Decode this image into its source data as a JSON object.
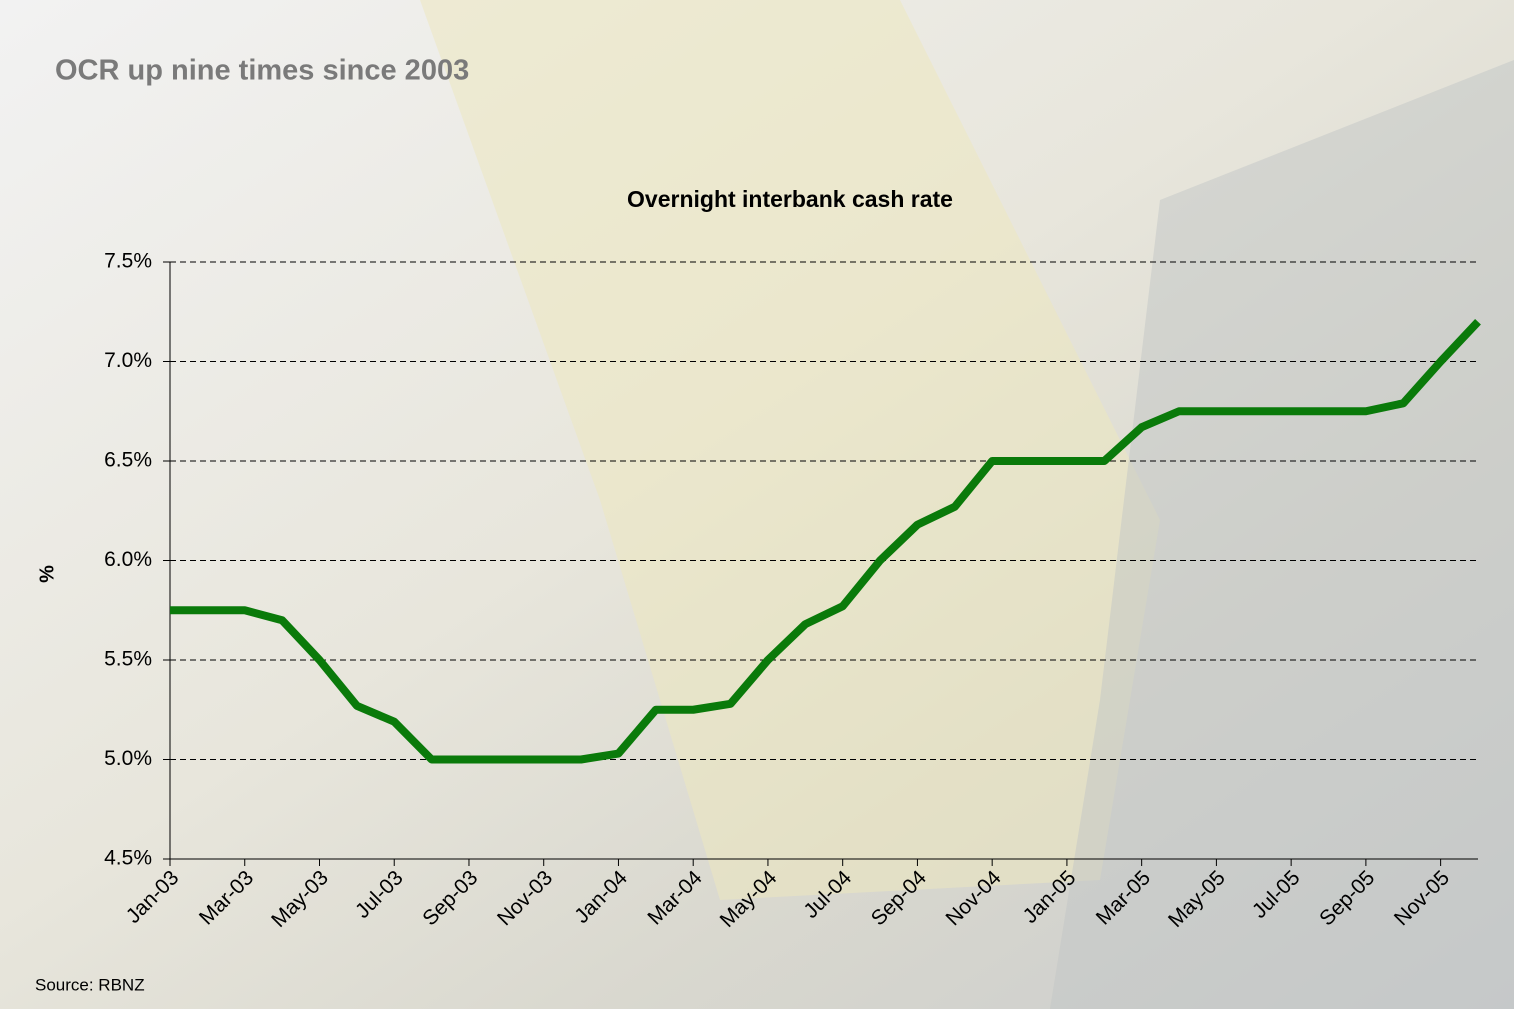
{
  "slide_title": "OCR up nine times since 2003",
  "source": "Source: RBNZ",
  "chart_data": {
    "type": "line",
    "title": "Overnight interbank cash rate",
    "y_label": "%",
    "categories": [
      "Jan-03",
      null,
      "Mar-03",
      null,
      "May-03",
      null,
      "Jul-03",
      null,
      "Sep-03",
      null,
      "Nov-03",
      null,
      "Jan-04",
      null,
      "Mar-04",
      null,
      "May-04",
      null,
      "Jul-04",
      null,
      "Sep-04",
      null,
      "Nov-04",
      null,
      "Jan-05",
      null,
      "Mar-05",
      null,
      "May-05",
      null,
      "Jul-05",
      null,
      "Sep-05",
      null,
      "Nov-05",
      null
    ],
    "values": [
      5.75,
      5.75,
      5.75,
      5.7,
      5.5,
      5.27,
      5.19,
      5.0,
      5.0,
      5.0,
      5.0,
      5.0,
      5.03,
      5.25,
      5.25,
      5.28,
      5.5,
      5.68,
      5.77,
      6.0,
      6.18,
      6.27,
      6.5,
      6.5,
      6.5,
      6.5,
      6.67,
      6.75,
      6.75,
      6.75,
      6.75,
      6.75,
      6.75,
      6.79,
      7.0,
      7.2
    ],
    "color": "#0a7a0a",
    "ylim": [
      4.5,
      7.5
    ],
    "yticks": [
      {
        "value": 4.5,
        "label": "4.5%"
      },
      {
        "value": 5.0,
        "label": "5.0%"
      },
      {
        "value": 5.5,
        "label": "5.5%"
      },
      {
        "value": 6.0,
        "label": "6.0%"
      },
      {
        "value": 6.5,
        "label": "6.5%"
      },
      {
        "value": 7.0,
        "label": "7.0%"
      },
      {
        "value": 7.5,
        "label": "7.5%"
      }
    ],
    "grid": true
  }
}
